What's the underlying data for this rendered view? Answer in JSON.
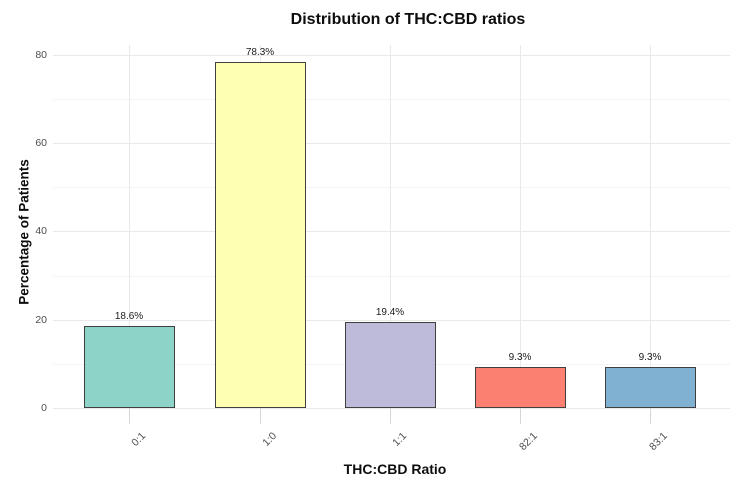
{
  "chart_data": {
    "type": "bar",
    "title": "Distribution of THC:CBD ratios",
    "xlabel": "THC:CBD Ratio",
    "ylabel": "Percentage of Patients",
    "categories": [
      "0:1",
      "1:0",
      "1:1",
      "82:1",
      "83:1"
    ],
    "values": [
      18.6,
      78.3,
      19.4,
      9.3,
      9.3
    ],
    "bar_labels": [
      "18.6%",
      "78.3%",
      "19.4%",
      "9.3%",
      "9.3%"
    ],
    "bar_colors": [
      "#8DD3C7",
      "#FFFFB3",
      "#BEBADA",
      "#FB8072",
      "#80B1D3"
    ],
    "bar_border_color": "#404040",
    "yticks": [
      0,
      20,
      40,
      60,
      80
    ],
    "yticks_minor": [
      10,
      30,
      50,
      70
    ],
    "ylim": [
      0,
      80
    ],
    "grid": "on",
    "legend": "none",
    "background_color": "#FFFFFF",
    "grid_major_color": "#E9E9E9",
    "grid_minor_color": "#F4F4F4",
    "tick_mark_color": "#D6D6D6",
    "tick_label_color": "#4D4D4D",
    "title_color": "#0D0D0D",
    "value_label_color": "#1A1A1A"
  }
}
